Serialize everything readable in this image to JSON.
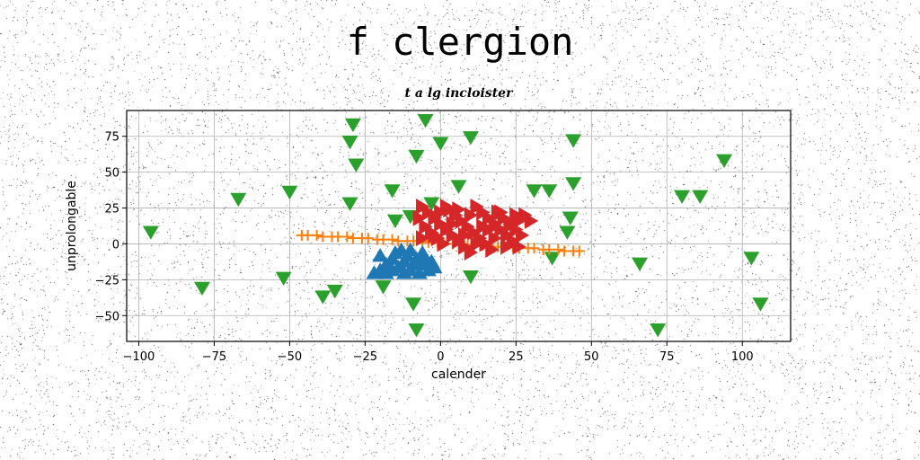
{
  "figure": {
    "title": "f clergion"
  },
  "chart_data": {
    "type": "scatter",
    "title": "t a lg incloister",
    "xlabel": "calender",
    "ylabel": "unprolongable",
    "xlim": [
      -104,
      116
    ],
    "ylim": [
      -68,
      93
    ],
    "xticks": [
      -100,
      -75,
      -50,
      -25,
      0,
      25,
      50,
      75,
      100
    ],
    "yticks": [
      -50,
      -25,
      0,
      25,
      50,
      75
    ],
    "grid": true,
    "legend": "none",
    "series": [
      {
        "marker": "triangle-down",
        "color": "#2ca02c",
        "points": [
          [
            -96,
            8
          ],
          [
            -79,
            -31
          ],
          [
            -67,
            31
          ],
          [
            -52,
            -24
          ],
          [
            -50,
            36
          ],
          [
            -39,
            -37
          ],
          [
            -35,
            -33
          ],
          [
            -29,
            83
          ],
          [
            -30,
            71
          ],
          [
            -28,
            55
          ],
          [
            -30,
            28
          ],
          [
            -16,
            37
          ],
          [
            -15,
            16
          ],
          [
            -10,
            19
          ],
          [
            -19,
            -30
          ],
          [
            -9,
            -42
          ],
          [
            -8,
            -60
          ],
          [
            -8,
            61
          ],
          [
            -5,
            86
          ],
          [
            -3,
            28
          ],
          [
            0,
            70
          ],
          [
            6,
            40
          ],
          [
            10,
            74
          ],
          [
            10,
            -23
          ],
          [
            31,
            37
          ],
          [
            36,
            37
          ],
          [
            37,
            -10
          ],
          [
            42,
            8
          ],
          [
            43,
            18
          ],
          [
            44,
            72
          ],
          [
            44,
            42
          ],
          [
            66,
            -14
          ],
          [
            72,
            -60
          ],
          [
            80,
            33
          ],
          [
            86,
            33
          ],
          [
            94,
            58
          ],
          [
            103,
            -10
          ],
          [
            106,
            -42
          ]
        ]
      },
      {
        "marker": "plus",
        "color": "#ff7f0e",
        "points": [
          [
            -46,
            6
          ],
          [
            -44,
            6
          ],
          [
            -41,
            6
          ],
          [
            -39,
            5
          ],
          [
            -36,
            5
          ],
          [
            -34,
            5
          ],
          [
            -31,
            5
          ],
          [
            -29,
            4
          ],
          [
            -26,
            4
          ],
          [
            -24,
            4
          ],
          [
            -21,
            3
          ],
          [
            -19,
            3
          ],
          [
            -16,
            3
          ],
          [
            -14,
            2
          ],
          [
            -11,
            2
          ],
          [
            -9,
            2
          ],
          [
            -6,
            2
          ],
          [
            -4,
            1
          ],
          [
            -1,
            1
          ],
          [
            1,
            1
          ],
          [
            4,
            0
          ],
          [
            6,
            0
          ],
          [
            9,
            -1
          ],
          [
            11,
            -1
          ],
          [
            14,
            -1
          ],
          [
            16,
            -1
          ],
          [
            19,
            -2
          ],
          [
            21,
            -2
          ],
          [
            24,
            -2
          ],
          [
            26,
            -3
          ],
          [
            29,
            -3
          ],
          [
            31,
            -3
          ],
          [
            34,
            -4
          ],
          [
            36,
            -4
          ],
          [
            39,
            -4
          ],
          [
            41,
            -5
          ],
          [
            44,
            -5
          ],
          [
            46,
            -5
          ]
        ]
      },
      {
        "marker": "triangle-up",
        "color": "#1f77b4",
        "points": [
          [
            -22,
            -20
          ],
          [
            -20,
            -18
          ],
          [
            -18,
            -14
          ],
          [
            -16,
            -10
          ],
          [
            -14,
            -16
          ],
          [
            -12,
            -12
          ],
          [
            -10,
            -18
          ],
          [
            -8,
            -10
          ],
          [
            -6,
            -14
          ],
          [
            -4,
            -18
          ],
          [
            -20,
            -8
          ],
          [
            -15,
            -6
          ],
          [
            -10,
            -4
          ],
          [
            -5,
            -10
          ],
          [
            -2,
            -16
          ],
          [
            -18,
            -20
          ],
          [
            -12,
            -20
          ],
          [
            -7,
            -20
          ],
          [
            -3,
            -12
          ],
          [
            -16,
            -18
          ],
          [
            -11,
            -8
          ],
          [
            -6,
            -6
          ],
          [
            -13,
            -4
          ],
          [
            -9,
            -14
          ]
        ]
      },
      {
        "marker": "triangle-right",
        "color": "#d62728",
        "points": [
          [
            -6,
            26
          ],
          [
            -4,
            22
          ],
          [
            -2,
            18
          ],
          [
            0,
            14
          ],
          [
            2,
            10
          ],
          [
            4,
            6
          ],
          [
            6,
            2
          ],
          [
            8,
            -2
          ],
          [
            10,
            -6
          ],
          [
            -5,
            12
          ],
          [
            -3,
            8
          ],
          [
            -1,
            4
          ],
          [
            1,
            0
          ],
          [
            3,
            24
          ],
          [
            5,
            20
          ],
          [
            7,
            16
          ],
          [
            9,
            12
          ],
          [
            11,
            8
          ],
          [
            13,
            4
          ],
          [
            15,
            0
          ],
          [
            17,
            -4
          ],
          [
            12,
            26
          ],
          [
            14,
            22
          ],
          [
            16,
            18
          ],
          [
            18,
            14
          ],
          [
            20,
            10
          ],
          [
            22,
            6
          ],
          [
            24,
            2
          ],
          [
            26,
            -2
          ],
          [
            19,
            22
          ],
          [
            21,
            18
          ],
          [
            23,
            14
          ],
          [
            25,
            10
          ],
          [
            27,
            6
          ],
          [
            28,
            20
          ],
          [
            30,
            16
          ],
          [
            25,
            20
          ],
          [
            -7,
            18
          ],
          [
            -6,
            4
          ],
          [
            2,
            26
          ],
          [
            6,
            24
          ],
          [
            10,
            20
          ],
          [
            14,
            12
          ],
          [
            18,
            4
          ],
          [
            22,
            -2
          ],
          [
            8,
            6
          ],
          [
            4,
            14
          ],
          [
            0,
            22
          ],
          [
            -2,
            6
          ],
          [
            16,
            10
          ],
          [
            20,
            22
          ],
          [
            24,
            14
          ],
          [
            12,
            0
          ],
          [
            26,
            16
          ]
        ]
      }
    ]
  }
}
